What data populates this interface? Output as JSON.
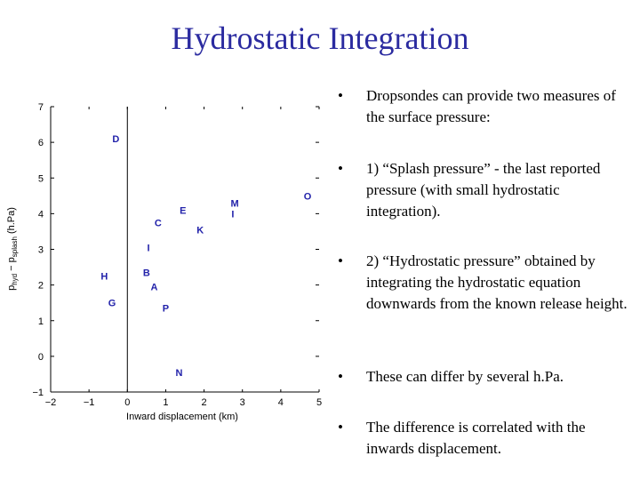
{
  "slide": {
    "title": "Hydrostatic Integration",
    "bullets": [
      "Dropsondes can provide two measures of the surface pressure:",
      "1) “Splash pressure” - the last reported pressure (with small hydrostatic integration).",
      "2) “Hydrostatic pressure” obtained by integrating the hydrostatic equation downwards from the known release height.",
      "These can differ by several h.Pa.",
      "The difference is correlated with the inwards displacement."
    ],
    "bullet_symbol": "•"
  },
  "chart_data": {
    "type": "scatter",
    "xlabel": "Inward displacement (km)",
    "ylabel": "pₕᵧᵈ − pₛₚₗₐₛₕ (h.Pa)",
    "ylabel_main": "p",
    "ylabel_sub1": "hyd",
    "ylabel_sep": " − p",
    "ylabel_sub2": "splash",
    "ylabel_unit": " (h.Pa)",
    "xlim": [
      -2,
      5
    ],
    "ylim": [
      -1,
      7
    ],
    "xticks": [
      "−2",
      "−1",
      "0",
      "1",
      "2",
      "3",
      "4",
      "5"
    ],
    "yticks": [
      "−1",
      "0",
      "1",
      "2",
      "3",
      "4",
      "5",
      "6",
      "7"
    ],
    "point_color": "#2222aa",
    "points": [
      {
        "label": "D",
        "x": -0.3,
        "y": 6.1
      },
      {
        "label": "M",
        "x": 2.8,
        "y": 4.3
      },
      {
        "label": "O",
        "x": 4.7,
        "y": 4.5
      },
      {
        "label": "E",
        "x": 1.45,
        "y": 4.1
      },
      {
        "label": "I",
        "x": 2.75,
        "y": 4.0
      },
      {
        "label": "C",
        "x": 0.8,
        "y": 3.75
      },
      {
        "label": "K",
        "x": 1.9,
        "y": 3.55
      },
      {
        "label": "I",
        "x": 0.55,
        "y": 3.05
      },
      {
        "label": "H",
        "x": -0.6,
        "y": 2.25
      },
      {
        "label": "B",
        "x": 0.5,
        "y": 2.35
      },
      {
        "label": "A",
        "x": 0.7,
        "y": 1.95
      },
      {
        "label": "G",
        "x": -0.4,
        "y": 1.5
      },
      {
        "label": "P",
        "x": 1.0,
        "y": 1.35
      },
      {
        "label": "N",
        "x": 1.35,
        "y": -0.45
      }
    ]
  }
}
